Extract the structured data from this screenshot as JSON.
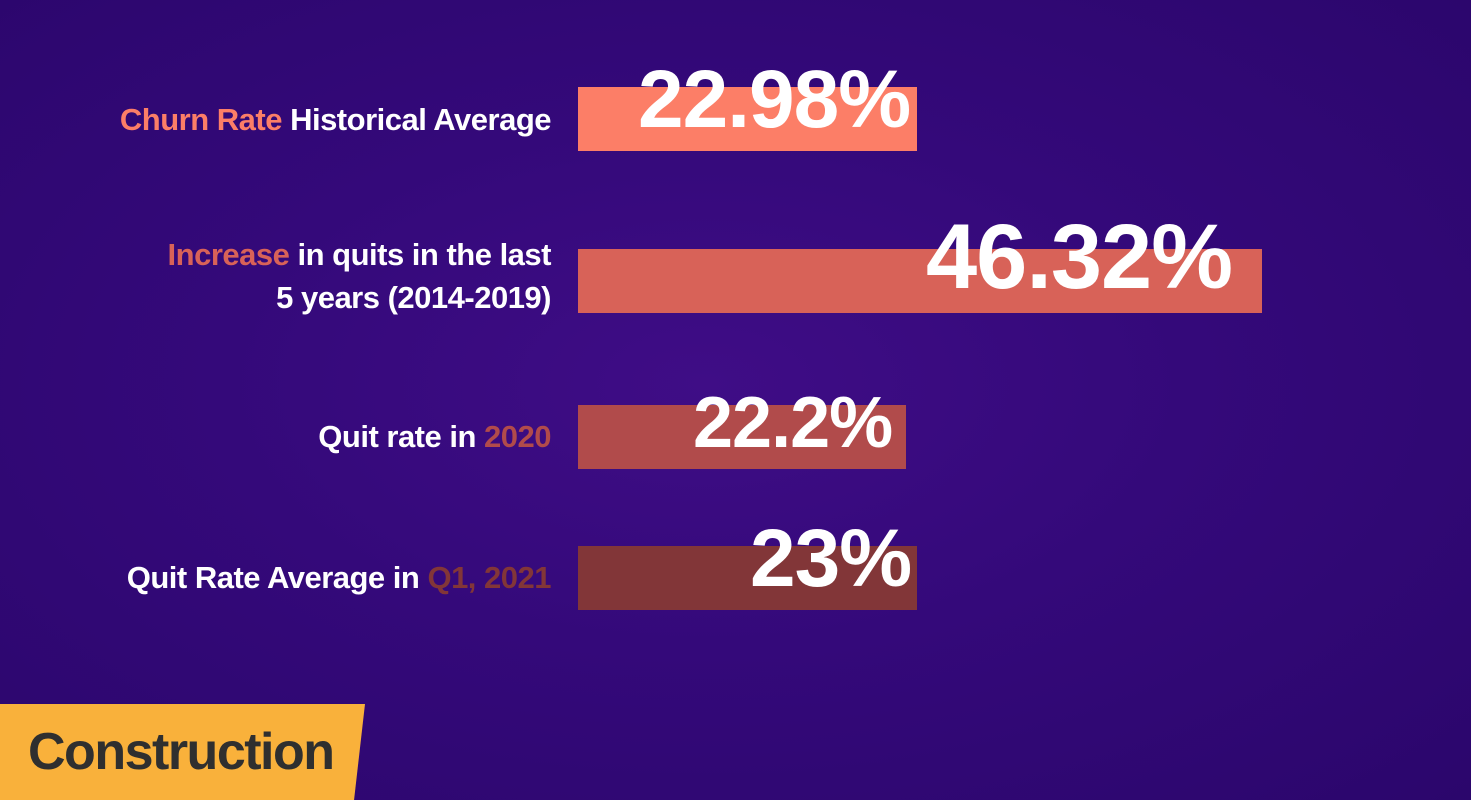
{
  "chart_data": {
    "type": "bar",
    "orientation": "horizontal",
    "categories": [
      "Churn Rate Historical Average",
      "Increase in quits in the last 5 years (2014-2019)",
      "Quit rate in 2020",
      "Quit Rate Average in Q1, 2021"
    ],
    "rows": [
      {
        "highlight": "Churn Rate",
        "rest": " Historical Average",
        "highlight_first": true,
        "value": 22.98,
        "value_label": "22.98%",
        "color": "#fc7e67"
      },
      {
        "highlight": "Increase",
        "rest": " in quits in the last 5 years (2014-2019)",
        "highlight_first": true,
        "value": 46.32,
        "value_label": "46.32%",
        "color": "#d86258"
      },
      {
        "highlight": "2020",
        "rest": "Quit rate in ",
        "highlight_first": false,
        "value": 22.2,
        "value_label": "22.2%",
        "color": "#b14b4b"
      },
      {
        "highlight": "Q1, 2021",
        "rest": "Quit Rate Average in ",
        "highlight_first": false,
        "value": 23,
        "value_label": "23%",
        "color": "#823638"
      }
    ],
    "highlight_colors": [
      "#fc7e67",
      "#d86258",
      "#b14b4b",
      "#823638"
    ],
    "xlim": [
      0,
      50
    ]
  },
  "category_tag": {
    "label": "Construction",
    "color": "#f9b13b"
  },
  "background_color": "#35097a"
}
